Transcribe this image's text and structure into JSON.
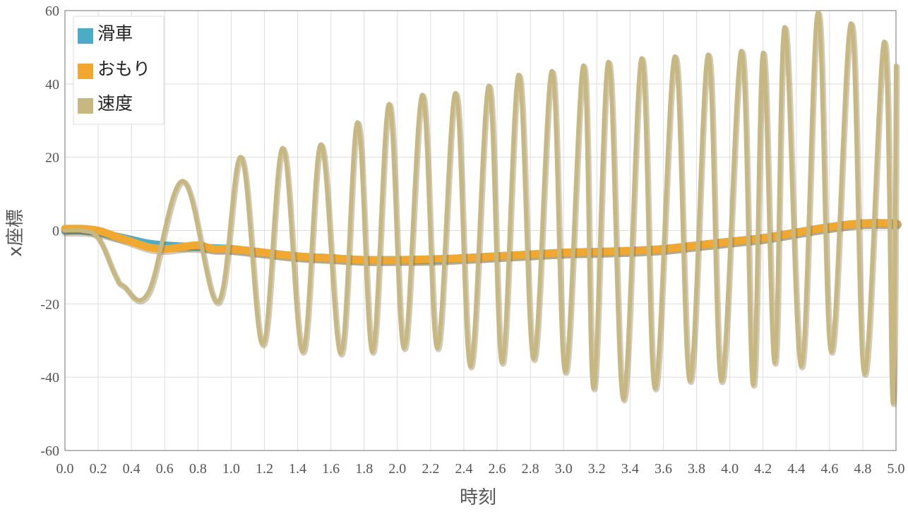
{
  "chart_data": {
    "type": "line",
    "xlabel": "時刻",
    "ylabel": "x座標",
    "xlim": [
      0,
      5
    ],
    "ylim": [
      -60,
      60
    ],
    "x_ticks": [
      "0.0",
      "0.2",
      "0.4",
      "0.6",
      "0.8",
      "1.0",
      "1.2",
      "1.4",
      "1.6",
      "1.8",
      "2.0",
      "2.2",
      "2.4",
      "2.6",
      "2.8",
      "3.0",
      "3.2",
      "3.4",
      "3.6",
      "3.8",
      "4.0",
      "4.2",
      "4.4",
      "4.6",
      "4.8",
      "5.0"
    ],
    "y_ticks": [
      "60",
      "40",
      "20",
      "0",
      "-20",
      "-40",
      "-60"
    ],
    "grid": true,
    "legend_position": "top-left",
    "series": [
      {
        "name": "滑車",
        "color": "#4bacc6",
        "description": "slow drift with small oscillation",
        "x": [
          0.0,
          0.1,
          0.2,
          0.3,
          0.4,
          0.5,
          0.6,
          0.7,
          0.8,
          0.9,
          1.0,
          1.2,
          1.4,
          1.6,
          1.8,
          2.0,
          2.2,
          2.4,
          2.6,
          2.8,
          3.0,
          3.2,
          3.4,
          3.6,
          3.8,
          4.0,
          4.2,
          4.4,
          4.6,
          4.8,
          5.0
        ],
        "y": [
          0,
          0,
          -0.5,
          -1.5,
          -2.5,
          -3.5,
          -4,
          -4.3,
          -4.5,
          -4.8,
          -5,
          -6,
          -7,
          -7.5,
          -8,
          -8,
          -8,
          -7.5,
          -7,
          -6.5,
          -6,
          -5.8,
          -5.5,
          -5,
          -4,
          -3,
          -2,
          -0.5,
          1,
          2,
          2
        ]
      },
      {
        "name": "おもり",
        "color": "#f0a830",
        "description": "slow drift with small oscillation",
        "x": [
          0.0,
          0.1,
          0.2,
          0.3,
          0.4,
          0.5,
          0.6,
          0.7,
          0.8,
          0.9,
          1.0,
          1.2,
          1.4,
          1.6,
          1.8,
          2.0,
          2.2,
          2.4,
          2.6,
          2.8,
          3.0,
          3.2,
          3.4,
          3.6,
          3.8,
          4.0,
          4.2,
          4.4,
          4.6,
          4.8,
          5.0
        ],
        "y": [
          0.5,
          0.5,
          0,
          -1.5,
          -3,
          -4.5,
          -5,
          -4.5,
          -4,
          -5,
          -5,
          -6,
          -7,
          -7.5,
          -8,
          -8,
          -7.8,
          -7.5,
          -7,
          -6.5,
          -6,
          -5.8,
          -5.5,
          -5,
          -4,
          -3,
          -2,
          -0.5,
          1,
          2,
          2
        ]
      },
      {
        "name": "速度",
        "color": "#c7b882",
        "description": "growing oscillation; peaks and troughs listed",
        "x": [
          0.0,
          0.1,
          0.2,
          0.3,
          0.35,
          0.5,
          0.71,
          0.92,
          1.06,
          1.19,
          1.31,
          1.43,
          1.54,
          1.66,
          1.76,
          1.85,
          1.95,
          2.04,
          2.15,
          2.24,
          2.35,
          2.44,
          2.55,
          2.63,
          2.73,
          2.82,
          2.93,
          3.01,
          3.12,
          3.18,
          3.27,
          3.36,
          3.47,
          3.55,
          3.67,
          3.76,
          3.87,
          3.95,
          4.07,
          4.14,
          4.2,
          4.27,
          4.33,
          4.43,
          4.53,
          4.61,
          4.73,
          4.81,
          4.93,
          4.98,
          5.0
        ],
        "y": [
          0,
          0,
          -2,
          -12,
          -15,
          -17,
          13.5,
          -19.5,
          20,
          -31,
          22.5,
          -33,
          23.5,
          -33.5,
          29.5,
          -33,
          34.5,
          -32,
          37,
          -32,
          37.5,
          -37,
          39.5,
          -36,
          42.5,
          -35,
          43.5,
          -38.5,
          45,
          -43,
          46,
          -46,
          47,
          -43,
          47.5,
          -41,
          48,
          -41,
          49,
          -42,
          48.5,
          -36,
          55.5,
          -37,
          59.5,
          -33,
          56.5,
          -39,
          51.5,
          -47,
          45
        ]
      }
    ]
  }
}
